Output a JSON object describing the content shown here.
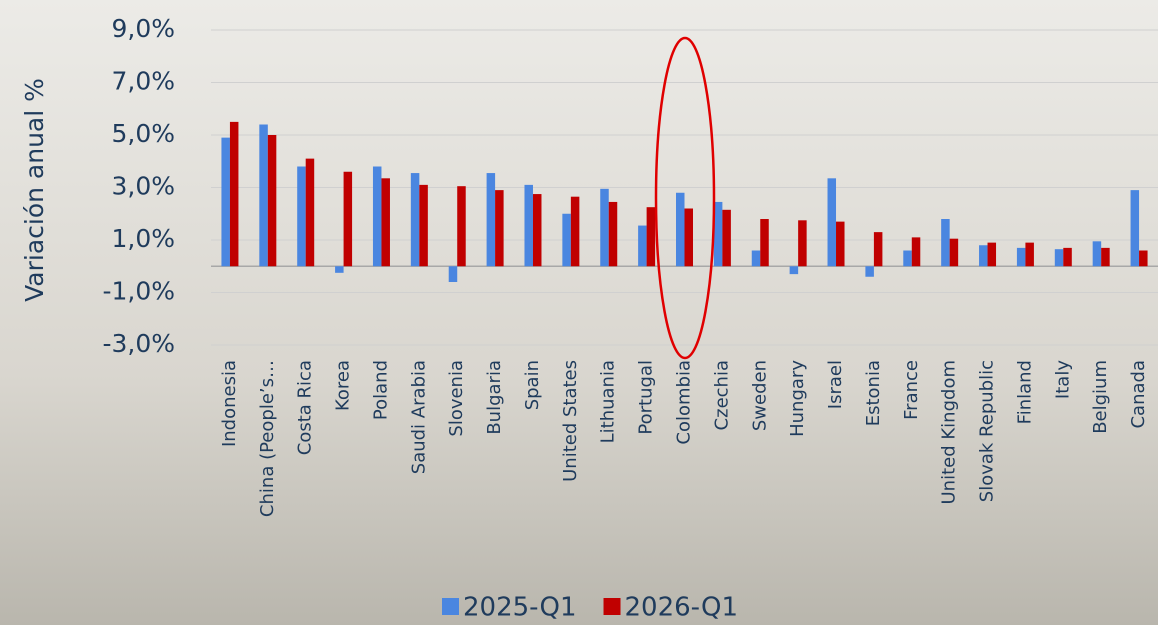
{
  "chart_data": {
    "type": "bar",
    "ylabel": "Variación anual %",
    "categories": [
      "Indonesia",
      "China (People’s…",
      "Costa Rica",
      "Korea",
      "Poland",
      "Saudi Arabia",
      "Slovenia",
      "Bulgaria",
      "Spain",
      "United States",
      "Lithuania",
      "Portugal",
      "Colombia",
      "Czechia",
      "Sweden",
      "Hungary",
      "Israel",
      "Estonia",
      "France",
      "United Kingdom",
      "Slovak Republic",
      "Finland",
      "Italy",
      "Belgium",
      "Canada"
    ],
    "series": [
      {
        "name": "2025-Q1",
        "color": "#4a86e0",
        "values": [
          4.9,
          5.4,
          3.8,
          -0.25,
          3.8,
          3.55,
          -0.6,
          3.55,
          3.1,
          2.0,
          2.95,
          1.55,
          2.8,
          2.45,
          0.6,
          -0.3,
          3.35,
          -0.4,
          0.6,
          1.8,
          0.8,
          0.7,
          0.65,
          0.95,
          2.9
        ]
      },
      {
        "name": "2026-Q1",
        "color": "#c00000",
        "values": [
          5.5,
          5.0,
          4.1,
          3.6,
          3.35,
          3.1,
          3.05,
          2.9,
          2.75,
          2.65,
          2.45,
          2.25,
          2.2,
          2.15,
          1.8,
          1.75,
          1.7,
          1.3,
          1.1,
          1.05,
          0.9,
          0.9,
          0.7,
          0.7,
          0.6
        ]
      }
    ],
    "ylim": [
      -3,
      9
    ],
    "yticks": [
      {
        "value": 9,
        "label": "9,0%"
      },
      {
        "value": 7,
        "label": "7,0%"
      },
      {
        "value": 5,
        "label": "5,0%"
      },
      {
        "value": 3,
        "label": "3,0%"
      },
      {
        "value": 1,
        "label": "1,0%"
      },
      {
        "value": -1,
        "label": "-1,0%"
      },
      {
        "value": -3,
        "label": "-3,0%"
      }
    ],
    "grid": true,
    "legend": "bottom"
  }
}
